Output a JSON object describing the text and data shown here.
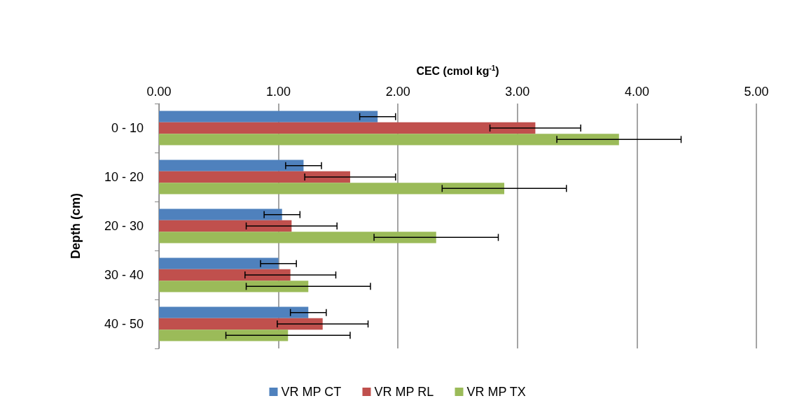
{
  "chart_data": {
    "type": "bar",
    "orientation": "horizontal",
    "xlabel": "CEC (cmol kg$^{-1}$)",
    "ylabel": "Depth (cm)",
    "categories": [
      "0 - 10",
      "10 - 20",
      "20 - 30",
      "30 - 40",
      "40 - 50"
    ],
    "series": [
      {
        "name": "VR MP CT",
        "color": "#4f81bd",
        "values": [
          1.83,
          1.21,
          1.03,
          1.0,
          1.25
        ],
        "errors": [
          0.15,
          0.15,
          0.15,
          0.15,
          0.15
        ]
      },
      {
        "name": "VR MP RL",
        "color": "#c0504d",
        "values": [
          3.15,
          1.6,
          1.11,
          1.1,
          1.37
        ],
        "errors": [
          0.38,
          0.38,
          0.38,
          0.38,
          0.38
        ]
      },
      {
        "name": "VR MP TX",
        "color": "#9bbb59",
        "values": [
          3.85,
          2.89,
          2.32,
          1.25,
          1.08
        ],
        "errors": [
          0.52,
          0.52,
          0.52,
          0.52,
          0.52
        ]
      }
    ],
    "xlim": [
      0,
      5
    ],
    "xticks": [
      {
        "value": 0,
        "label": "0.00"
      },
      {
        "value": 1,
        "label": "1.00"
      },
      {
        "value": 2,
        "label": "2.00"
      },
      {
        "value": 3,
        "label": "3.00"
      },
      {
        "value": 4,
        "label": "4.00"
      },
      {
        "value": 5,
        "label": "5.00"
      }
    ],
    "grid": "x",
    "legend": "bottom"
  }
}
